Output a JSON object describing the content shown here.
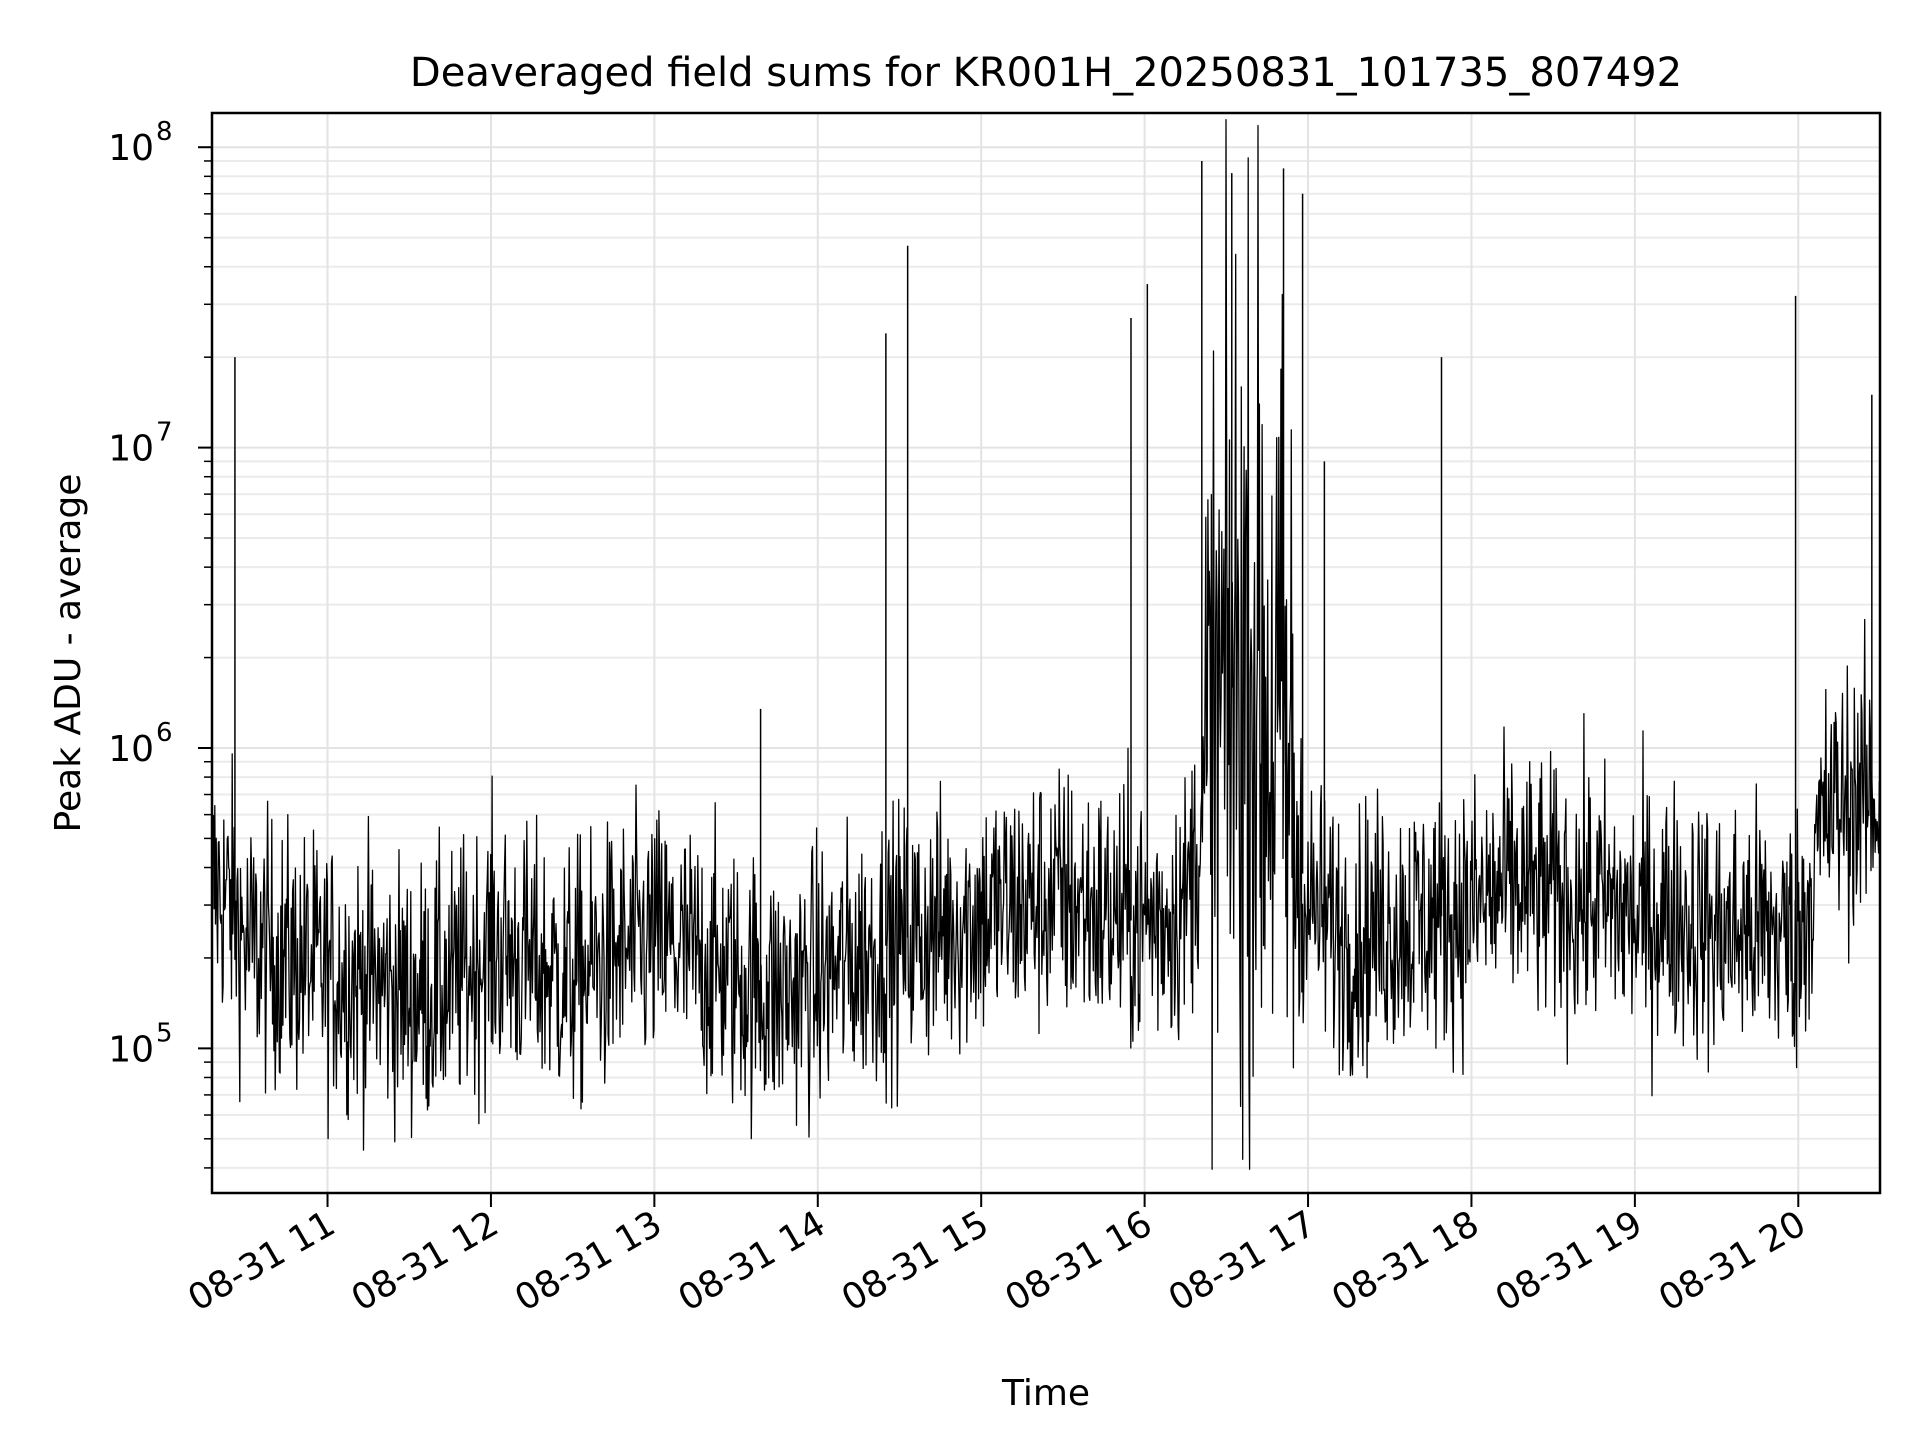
{
  "chart_data": {
    "type": "line",
    "title": "Deaveraged field sums for KR001H_20250831_101735_807492",
    "xlabel": "Time",
    "ylabel": "Peak ADU - average",
    "y_scale": "log",
    "ylim": [
      33000,
      130000000
    ],
    "xlim": [
      "2025-08-31 10:17:35",
      "2025-08-31 20:30:00"
    ],
    "grid": true,
    "line_color": "#000000",
    "x_ticks": [
      "08-31 11",
      "08-31 12",
      "08-31 13",
      "08-31 14",
      "08-31 15",
      "08-31 16",
      "08-31 17",
      "08-31 18",
      "08-31 19",
      "08-31 20"
    ],
    "x_tick_times": [
      "2025-08-31 11:00",
      "2025-08-31 12:00",
      "2025-08-31 13:00",
      "2025-08-31 14:00",
      "2025-08-31 15:00",
      "2025-08-31 16:00",
      "2025-08-31 17:00",
      "2025-08-31 18:00",
      "2025-08-31 19:00",
      "2025-08-31 20:00"
    ],
    "y_ticks": [
      100000,
      1000000,
      10000000,
      100000000
    ],
    "y_tick_labels": [
      {
        "base": "10",
        "exp": "5"
      },
      {
        "base": "10",
        "exp": "6"
      },
      {
        "base": "10",
        "exp": "7"
      },
      {
        "base": "10",
        "exp": "8"
      }
    ],
    "series": [
      {
        "x": [
          "2025-08-31 10:18",
          "2025-08-31 10:25",
          "2025-08-31 10:30",
          "2025-08-31 10:45",
          "2025-08-31 11:00",
          "2025-08-31 11:15",
          "2025-08-31 11:30",
          "2025-08-31 11:45",
          "2025-08-31 12:00",
          "2025-08-31 12:15",
          "2025-08-31 12:30",
          "2025-08-31 12:45",
          "2025-08-31 13:00",
          "2025-08-31 13:15",
          "2025-08-31 13:30",
          "2025-08-31 13:45",
          "2025-08-31 14:00",
          "2025-08-31 14:15",
          "2025-08-31 14:30",
          "2025-08-31 14:45",
          "2025-08-31 15:00",
          "2025-08-31 15:15",
          "2025-08-31 15:30",
          "2025-08-31 15:45",
          "2025-08-31 16:00",
          "2025-08-31 16:15",
          "2025-08-31 16:30",
          "2025-08-31 16:40",
          "2025-08-31 16:50",
          "2025-08-31 17:00",
          "2025-08-31 17:15",
          "2025-08-31 17:30",
          "2025-08-31 17:45",
          "2025-08-31 18:00",
          "2025-08-31 18:15",
          "2025-08-31 18:30",
          "2025-08-31 18:45",
          "2025-08-31 19:00",
          "2025-08-31 19:15",
          "2025-08-31 19:30",
          "2025-08-31 19:45",
          "2025-08-31 20:00",
          "2025-08-31 20:10",
          "2025-08-31 20:20",
          "2025-08-31 20:29"
        ],
        "values": [
          350000,
          300000,
          220000,
          200000,
          180000,
          170000,
          150000,
          160000,
          220000,
          190000,
          170000,
          200000,
          230000,
          200000,
          170000,
          150000,
          170000,
          200000,
          230000,
          250000,
          280000,
          300000,
          320000,
          280000,
          260000,
          300000,
          1500000,
          2000000,
          1000000,
          300000,
          230000,
          260000,
          270000,
          290000,
          350000,
          320000,
          310000,
          270000,
          280000,
          240000,
          250000,
          230000,
          600000,
          700000,
          650000
        ]
      }
    ],
    "spikes": [
      {
        "x": "2025-08-31 10:26",
        "value": 20000000
      },
      {
        "x": "2025-08-31 13:39",
        "value": 1350000
      },
      {
        "x": "2025-08-31 14:25",
        "value": 24000000
      },
      {
        "x": "2025-08-31 14:33",
        "value": 47000000
      },
      {
        "x": "2025-08-31 15:55",
        "value": 27000000
      },
      {
        "x": "2025-08-31 16:01",
        "value": 35000000
      },
      {
        "x": "2025-08-31 16:21",
        "value": 90000000
      },
      {
        "x": "2025-08-31 16:32",
        "value": 82000000
      },
      {
        "x": "2025-08-31 16:51",
        "value": 85000000
      },
      {
        "x": "2025-08-31 16:58",
        "value": 70000000
      },
      {
        "x": "2025-08-31 17:06",
        "value": 9000000
      },
      {
        "x": "2025-08-31 17:49",
        "value": 20000000
      },
      {
        "x": "2025-08-31 19:59",
        "value": 32000000
      },
      {
        "x": "2025-08-31 20:27",
        "value": 15000000
      }
    ]
  }
}
